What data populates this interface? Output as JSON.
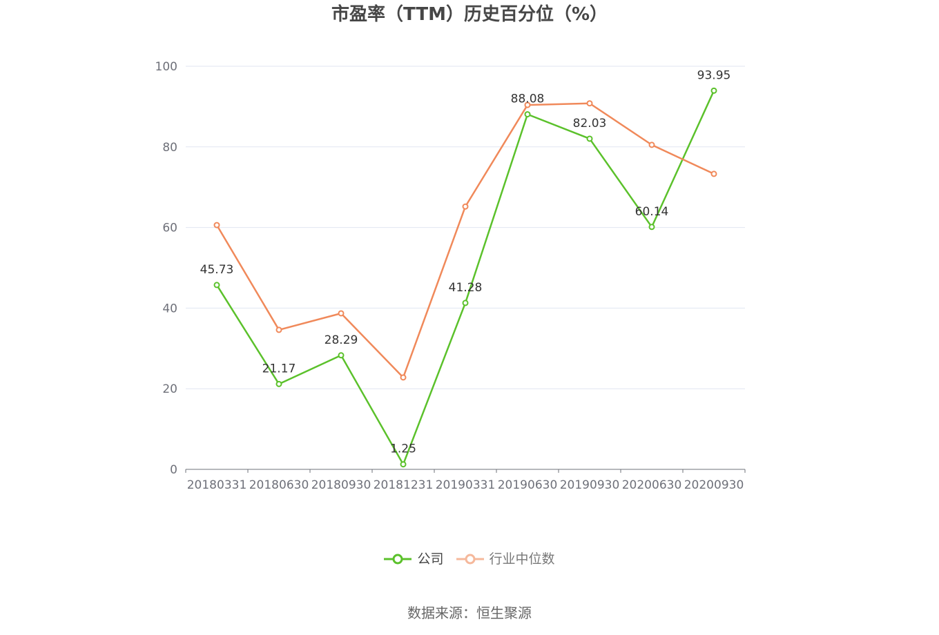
{
  "chart_data": {
    "type": "line",
    "title": "市盈率（TTM）历史百分位（%）",
    "categories": [
      "20180331",
      "20180630",
      "20180930",
      "20181231",
      "20190331",
      "20190630",
      "20190930",
      "20200630",
      "20200930"
    ],
    "series": [
      {
        "name": "公司",
        "values": [
          45.73,
          21.17,
          28.29,
          1.25,
          41.28,
          88.08,
          82.03,
          60.14,
          93.95
        ],
        "color": "#5bc12b",
        "show_labels": true
      },
      {
        "name": "行业中位数",
        "values": [
          60.6,
          34.6,
          38.7,
          22.8,
          65.2,
          90.4,
          90.8,
          80.5,
          73.3
        ],
        "color": "#f0895a",
        "show_labels": false
      }
    ],
    "ylim": [
      0,
      100
    ],
    "yticks": [
      0,
      20,
      40,
      60,
      80,
      100
    ],
    "grid": true,
    "legend_position": "bottom"
  },
  "source": "数据来源：恒生聚源"
}
